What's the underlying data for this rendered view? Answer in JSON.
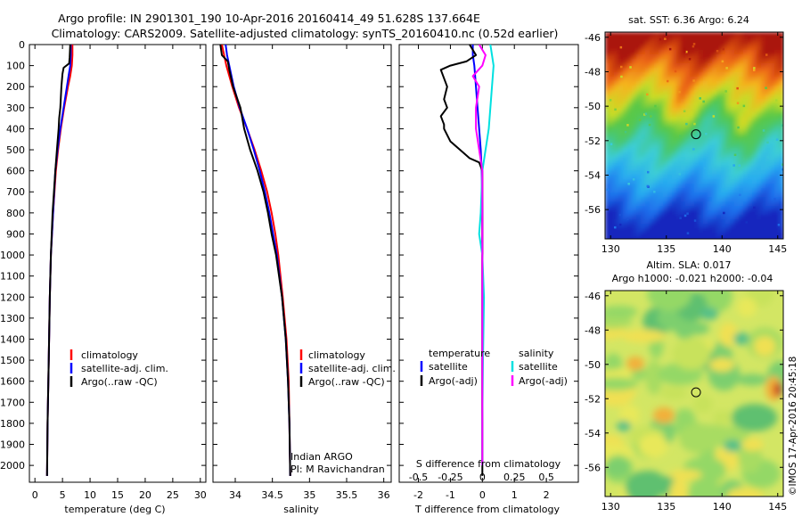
{
  "header": {
    "line1": "Argo profile: IN 2901301_190 10-Apr-2016 20160414_49 51.628S 137.664E",
    "line2": "Climatology: CARS2009. Satellite-adjusted climatology: synTS_20160410.nc (0.52d earlier)"
  },
  "colors": {
    "climatology": "#ff0000",
    "satellite": "#0000ff",
    "argo": "#000000",
    "sal_satellite": "#00e0e0",
    "sal_argo": "#ff00ff"
  },
  "chart_data": [
    {
      "type": "line",
      "name": "temperature-profile",
      "xlabel": "temperature (deg C)",
      "xlim": [
        -1,
        31
      ],
      "ylim": [
        2080,
        0
      ],
      "xticks": [
        0,
        5,
        10,
        15,
        20,
        25,
        30
      ],
      "yticks": [
        0,
        100,
        200,
        300,
        400,
        500,
        600,
        700,
        800,
        900,
        1000,
        1100,
        1200,
        1300,
        1400,
        1500,
        1600,
        1700,
        1800,
        1900,
        2000
      ],
      "legend": [
        "climatology",
        "satellite-adj. clim.",
        "Argo(..raw -QC)"
      ],
      "series": [
        {
          "name": "climatology",
          "y": [
            0,
            50,
            100,
            150,
            200,
            300,
            400,
            500,
            600,
            800,
            1000,
            1200,
            1500,
            1800,
            2050
          ],
          "x": [
            6.8,
            6.8,
            6.7,
            6.4,
            6.0,
            5.3,
            4.7,
            4.2,
            3.8,
            3.3,
            2.9,
            2.7,
            2.5,
            2.3,
            2.2
          ]
        },
        {
          "name": "satellite-adj. clim.",
          "y": [
            0,
            50,
            100,
            150,
            200,
            300,
            400,
            500,
            600,
            800,
            1000,
            1200,
            1500,
            1800,
            2050
          ],
          "x": [
            6.5,
            6.5,
            6.4,
            6.1,
            5.8,
            5.2,
            4.6,
            4.1,
            3.7,
            3.3,
            2.9,
            2.7,
            2.5,
            2.3,
            2.2
          ]
        },
        {
          "name": "Argo(..raw -QC)",
          "y": [
            0,
            60,
            90,
            110,
            140,
            200,
            300,
            350,
            400,
            500,
            600,
            800,
            1000,
            1200,
            1500,
            1800,
            2050
          ],
          "x": [
            6.4,
            6.3,
            6.2,
            5.2,
            5.0,
            4.8,
            4.6,
            4.4,
            4.3,
            4.0,
            3.7,
            3.2,
            2.9,
            2.7,
            2.5,
            2.3,
            2.2
          ]
        }
      ]
    },
    {
      "type": "line",
      "name": "salinity-profile",
      "xlabel": "salinity",
      "xlim": [
        33.7,
        36.1
      ],
      "ylim": [
        2080,
        0
      ],
      "xticks": [
        34,
        34.5,
        35,
        35.5,
        36
      ],
      "legend": [
        "climatology",
        "satellite-adj. clim.",
        "Argo(..raw -QC)"
      ],
      "annotation": [
        "Indian ARGO",
        "PI: M Ravichandran"
      ],
      "series": [
        {
          "name": "climatology",
          "y": [
            0,
            50,
            100,
            200,
            300,
            400,
            500,
            600,
            700,
            800,
            900,
            1000,
            1200,
            1400,
            1600,
            1800,
            2050
          ],
          "x": [
            33.82,
            33.85,
            33.88,
            33.96,
            34.05,
            34.16,
            34.26,
            34.35,
            34.43,
            34.49,
            34.54,
            34.58,
            34.64,
            34.69,
            34.72,
            34.73,
            34.74
          ]
        },
        {
          "name": "satellite-adj. clim.",
          "y": [
            0,
            50,
            100,
            200,
            300,
            400,
            500,
            600,
            700,
            800,
            900,
            1000,
            1200,
            1400,
            1600,
            1800,
            2050
          ],
          "x": [
            33.87,
            33.89,
            33.92,
            33.98,
            34.06,
            34.16,
            34.25,
            34.33,
            34.4,
            34.46,
            34.51,
            34.56,
            34.63,
            34.68,
            34.71,
            34.73,
            34.74
          ]
        },
        {
          "name": "Argo(..raw -QC)",
          "y": [
            0,
            50,
            80,
            120,
            200,
            300,
            400,
            500,
            600,
            700,
            800,
            900,
            1000,
            1200,
            1400,
            1600,
            1800,
            2050
          ],
          "x": [
            33.8,
            33.82,
            33.9,
            33.92,
            33.97,
            34.07,
            34.12,
            34.2,
            34.3,
            34.38,
            34.44,
            34.49,
            34.55,
            34.63,
            34.68,
            34.71,
            34.73,
            34.74
          ]
        }
      ]
    },
    {
      "type": "line",
      "name": "difference-profile",
      "xlabel": "T difference from climatology",
      "xlabel_top": "S difference from climatology",
      "xlim": [
        -2.6,
        3.0
      ],
      "ylim": [
        2080,
        0
      ],
      "xticks": [
        -2,
        -1,
        0,
        1,
        2
      ],
      "sticks_labels": [
        "-0.5",
        "-0.25",
        "0",
        "0.25",
        "0.5"
      ],
      "sticks_pos": [
        -2,
        -1,
        0,
        1,
        2
      ],
      "legend": {
        "temperature": [
          "satellite",
          "Argo(-adj)"
        ],
        "salinity": [
          "satellite",
          "Argo(-adj)"
        ],
        "temperature_title": "temperature",
        "salinity_title": "salinity"
      },
      "series": [
        {
          "name": "temperature satellite",
          "y": [
            0,
            50,
            100,
            200,
            300,
            400,
            500,
            600,
            800,
            1000,
            1500,
            2000
          ],
          "x": [
            -0.3,
            -0.3,
            -0.25,
            -0.2,
            -0.15,
            -0.1,
            -0.05,
            -0.02,
            0.0,
            0.0,
            0.0,
            0.0
          ]
        },
        {
          "name": "temperature Argo(-adj)",
          "y": [
            0,
            50,
            80,
            100,
            120,
            200,
            260,
            300,
            340,
            380,
            400,
            460,
            500,
            540,
            560,
            600,
            800,
            1000,
            1500,
            2050
          ],
          "x": [
            -0.4,
            -0.2,
            -0.5,
            -1.0,
            -1.3,
            -1.1,
            -1.2,
            -1.1,
            -1.3,
            -1.2,
            -1.2,
            -1.0,
            -0.7,
            -0.4,
            -0.1,
            0.0,
            0.0,
            0.0,
            0.0,
            0.0
          ]
        },
        {
          "name": "salinity satellite",
          "y": [
            0,
            50,
            100,
            200,
            400,
            600,
            800,
            900,
            1000,
            1200,
            1500,
            1800,
            2000
          ],
          "x": [
            0.25,
            0.3,
            0.35,
            0.3,
            0.2,
            0.0,
            -0.05,
            -0.1,
            0.0,
            0.05,
            0.02,
            0.0,
            0.0
          ]
        },
        {
          "name": "salinity Argo(-adj)",
          "y": [
            0,
            50,
            100,
            150,
            200,
            300,
            400,
            500,
            600,
            800,
            1000,
            1500,
            2000
          ],
          "x": [
            -0.1,
            0.1,
            0.0,
            -0.3,
            -0.1,
            -0.2,
            -0.2,
            -0.1,
            0.0,
            0.0,
            0.0,
            0.0,
            0.0
          ]
        }
      ]
    },
    {
      "type": "heatmap",
      "name": "sst-map",
      "title": "sat. SST: 6.36 Argo: 6.24",
      "xlim": [
        129.5,
        145.5
      ],
      "ylim": [
        -57.7,
        -45.7
      ],
      "xticks": [
        130,
        135,
        140,
        145
      ],
      "yticks": [
        -46,
        -48,
        -50,
        -52,
        -54,
        -56
      ],
      "marker": {
        "lon": 137.664,
        "lat": -51.628
      }
    },
    {
      "type": "heatmap",
      "name": "sla-map",
      "title": "Altim. SLA: 0.017",
      "subtitle": "Argo h1000: -0.021 h2000: -0.04",
      "xlim": [
        129.5,
        145.5
      ],
      "ylim": [
        -57.7,
        -45.7
      ],
      "xticks": [
        130,
        135,
        140,
        145
      ],
      "yticks": [
        -46,
        -48,
        -50,
        -52,
        -54,
        -56
      ],
      "marker": {
        "lon": 137.664,
        "lat": -51.628
      }
    }
  ],
  "watermark": "©IMOS 17-Apr-2016 20:45:18"
}
